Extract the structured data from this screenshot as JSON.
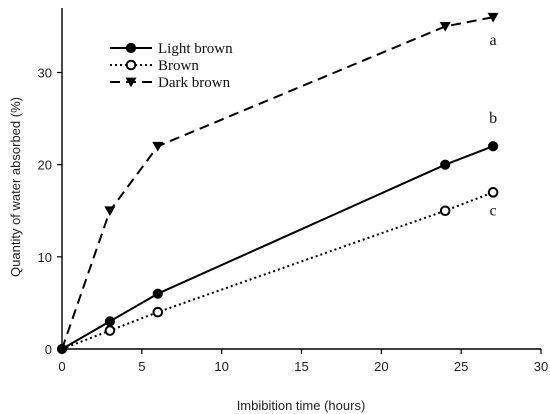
{
  "chart_data": {
    "type": "line",
    "xlabel": "Imbibition time (hours)",
    "ylabel": "Quantity of water absorbed (%)",
    "xlim": [
      0,
      30
    ],
    "ylim": [
      0,
      37
    ],
    "xticks": [
      0,
      5,
      10,
      15,
      20,
      25,
      30
    ],
    "yticks": [
      0,
      10,
      20,
      30
    ],
    "grid": false,
    "legend_position": "top-left",
    "series": [
      {
        "name": "Light brown",
        "x": [
          0,
          3,
          6,
          24,
          27
        ],
        "y": [
          0,
          3,
          6,
          20,
          22
        ],
        "line_style": "solid",
        "marker": "filled-circle",
        "color": "#000000"
      },
      {
        "name": "Brown",
        "x": [
          0,
          3,
          6,
          24,
          27
        ],
        "y": [
          0,
          2,
          4,
          15,
          17
        ],
        "line_style": "dotted",
        "marker": "open-circle",
        "color": "#000000"
      },
      {
        "name": "Dark brown",
        "x": [
          0,
          3,
          6,
          24,
          27
        ],
        "y": [
          0,
          15,
          22,
          35,
          36
        ],
        "line_style": "dashed",
        "marker": "filled-down-triangle",
        "color": "#000000"
      }
    ],
    "annotations": [
      {
        "text": "a",
        "x": 27.0,
        "y": 33.0
      },
      {
        "text": "b",
        "x": 27.0,
        "y": 24.5
      },
      {
        "text": "c",
        "x": 27.0,
        "y": 14.5
      }
    ]
  }
}
